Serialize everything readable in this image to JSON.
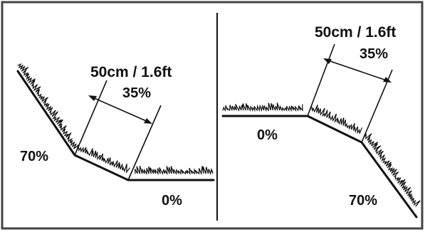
{
  "left_panel": {
    "distance_label": "50cm / 1.6ft",
    "slope_label": "35%",
    "upper_slope_label": "70%",
    "flat_label": "0%"
  },
  "right_panel": {
    "distance_label": "50cm / 1.6ft",
    "slope_label": "35%",
    "flat_label": "0%",
    "lower_slope_label": "70%"
  },
  "colors": {
    "line": "#111111",
    "background": "#ffffff",
    "frame": "#444444"
  }
}
